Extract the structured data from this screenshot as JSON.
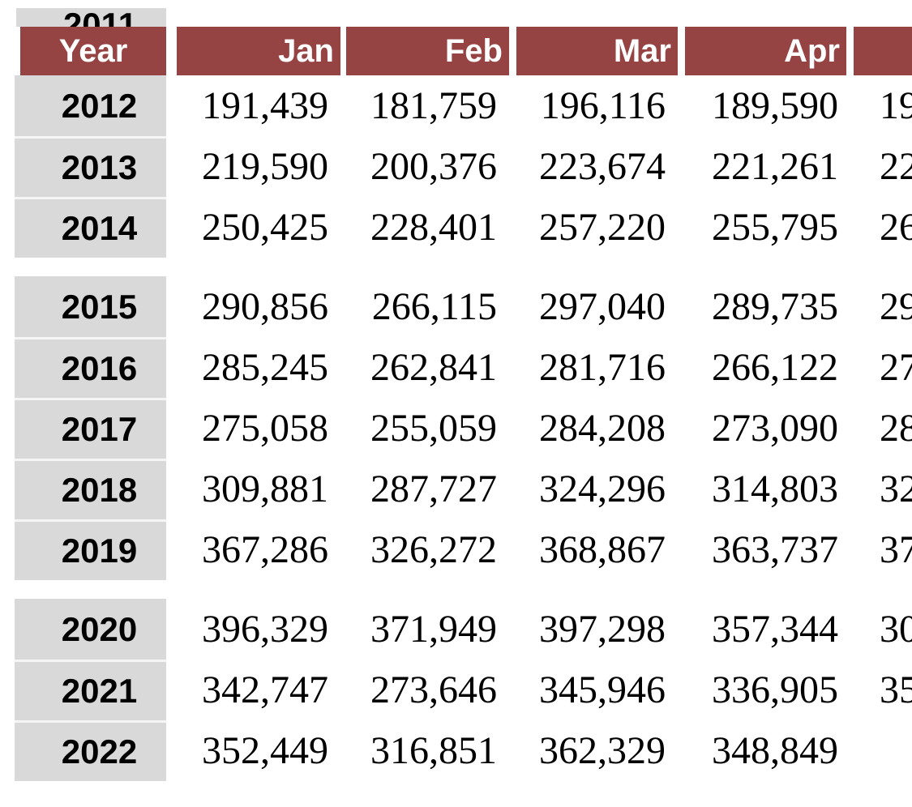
{
  "theme": {
    "header_bg": "#964343",
    "header_text": "#ffffff",
    "year_column_bg": "#d9d9d9",
    "body_text": "#000000",
    "background": "#ffffff"
  },
  "table": {
    "partial_top_row": {
      "year": "2011"
    },
    "header": {
      "year_label": "Year",
      "columns": [
        "Jan",
        "Feb",
        "Mar",
        "Apr"
      ],
      "partial_column_label": ""
    },
    "groups": [
      {
        "rows": [
          {
            "year": "2012",
            "jan": "191,439",
            "feb": "181,759",
            "mar": "196,116",
            "apr": "189,590",
            "may_partial": "19"
          },
          {
            "year": "2013",
            "jan": "219,590",
            "feb": "200,376",
            "mar": "223,674",
            "apr": "221,261",
            "may_partial": "22"
          },
          {
            "year": "2014",
            "jan": "250,425",
            "feb": "228,401",
            "mar": "257,220",
            "apr": "255,795",
            "may_partial": "26"
          }
        ]
      },
      {
        "rows": [
          {
            "year": "2015",
            "jan": "290,856",
            "feb": "266,115",
            "mar": "297,040",
            "apr": "289,735",
            "may_partial": "29"
          },
          {
            "year": "2016",
            "jan": "285,245",
            "feb": "262,841",
            "mar": "281,716",
            "apr": "266,122",
            "may_partial": "27"
          },
          {
            "year": "2017",
            "jan": "275,058",
            "feb": "255,059",
            "mar": "284,208",
            "apr": "273,090",
            "may_partial": "28"
          },
          {
            "year": "2018",
            "jan": "309,881",
            "feb": "287,727",
            "mar": "324,296",
            "apr": "314,803",
            "may_partial": "32"
          },
          {
            "year": "2019",
            "jan": "367,286",
            "feb": "326,272",
            "mar": "368,867",
            "apr": "363,737",
            "may_partial": "37"
          }
        ]
      },
      {
        "rows": [
          {
            "year": "2020",
            "jan": "396,329",
            "feb": "371,949",
            "mar": "397,298",
            "apr": "357,344",
            "may_partial": "30"
          },
          {
            "year": "2021",
            "jan": "342,747",
            "feb": "273,646",
            "mar": "345,946",
            "apr": "336,905",
            "may_partial": "35"
          },
          {
            "year": "2022",
            "jan": "352,449",
            "feb": "316,851",
            "mar": "362,329",
            "apr": "348,849",
            "may_partial": ""
          }
        ]
      }
    ]
  },
  "chart_data": {
    "type": "table",
    "title": "",
    "row_header": "Year",
    "categories": [
      "2012",
      "2013",
      "2014",
      "2015",
      "2016",
      "2017",
      "2018",
      "2019",
      "2020",
      "2021",
      "2022"
    ],
    "series": [
      {
        "name": "Jan",
        "values": [
          191439,
          219590,
          250425,
          290856,
          285245,
          275058,
          309881,
          367286,
          396329,
          342747,
          352449
        ]
      },
      {
        "name": "Feb",
        "values": [
          181759,
          200376,
          228401,
          266115,
          262841,
          255059,
          287727,
          326272,
          371949,
          273646,
          316851
        ]
      },
      {
        "name": "Mar",
        "values": [
          196116,
          223674,
          257220,
          297040,
          281716,
          284208,
          324296,
          368867,
          397298,
          345946,
          362329
        ]
      },
      {
        "name": "Apr",
        "values": [
          189590,
          221261,
          255795,
          289735,
          266122,
          273090,
          314803,
          363737,
          357344,
          336905,
          348849
        ]
      }
    ],
    "layout_hints": {
      "fifth_month_column_cut_off_at_right": true,
      "visible_leading_digits_of_cut_column": [
        "19",
        "22",
        "26",
        "29",
        "27",
        "28",
        "32",
        "37",
        "30",
        "35",
        ""
      ],
      "partial_row_above_header": "2011",
      "row_groups": [
        [
          "2012",
          "2013",
          "2014"
        ],
        [
          "2015",
          "2016",
          "2017",
          "2018",
          "2019"
        ],
        [
          "2020",
          "2021",
          "2022"
        ]
      ]
    }
  }
}
